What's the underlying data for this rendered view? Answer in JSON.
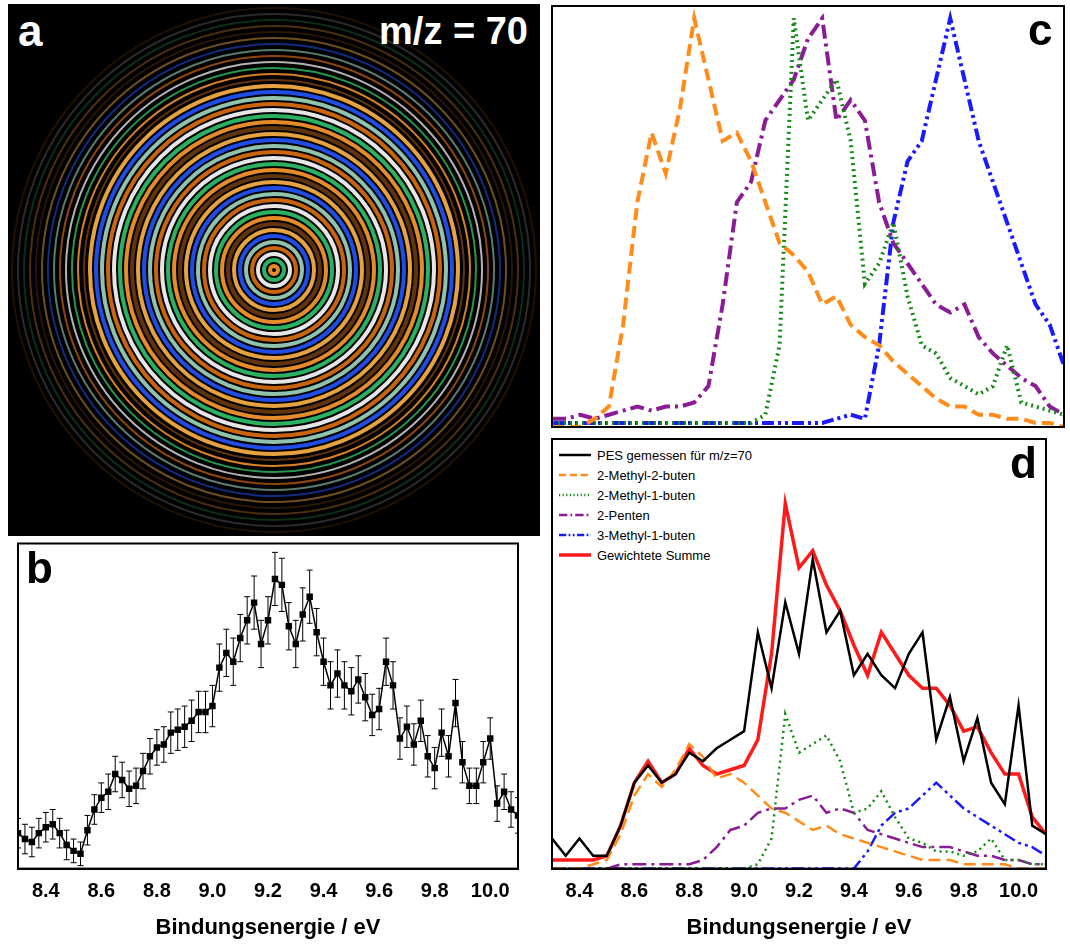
{
  "image_panel": {
    "panel": "a",
    "title": "m/z = 70"
  },
  "chart_data": [
    {
      "panel": "b",
      "type": "line",
      "x": [
        8.3,
        8.325,
        8.35,
        8.375,
        8.4,
        8.425,
        8.45,
        8.475,
        8.5,
        8.525,
        8.55,
        8.575,
        8.6,
        8.625,
        8.65,
        8.675,
        8.7,
        8.725,
        8.75,
        8.775,
        8.8,
        8.825,
        8.85,
        8.875,
        8.9,
        8.925,
        8.95,
        8.975,
        9.0,
        9.025,
        9.05,
        9.075,
        9.1,
        9.125,
        9.15,
        9.175,
        9.2,
        9.225,
        9.25,
        9.275,
        9.3,
        9.325,
        9.35,
        9.375,
        9.4,
        9.425,
        9.45,
        9.475,
        9.5,
        9.525,
        9.55,
        9.575,
        9.6,
        9.625,
        9.65,
        9.675,
        9.7,
        9.725,
        9.75,
        9.775,
        9.8,
        9.825,
        9.85,
        9.875,
        9.9,
        9.925,
        9.95,
        9.975,
        10.0,
        10.025,
        10.05,
        10.075,
        10.1
      ],
      "series": [
        {
          "color": "#000000",
          "marker": "square",
          "line_style": "solid",
          "values": [
            12,
            10,
            9,
            12,
            14,
            15,
            12,
            8,
            6,
            5,
            13,
            20,
            24,
            26,
            32,
            30,
            27,
            28,
            33,
            38,
            41,
            42,
            46,
            47,
            48,
            50,
            53,
            53,
            55,
            68,
            73,
            70,
            78,
            84,
            90,
            76,
            84,
            98,
            96,
            82,
            76,
            86,
            92,
            80,
            70,
            62,
            66,
            62,
            60,
            64,
            58,
            52,
            54,
            70,
            62,
            44,
            48,
            42,
            50,
            38,
            34,
            46,
            38,
            56,
            36,
            28,
            28,
            36,
            44,
            22,
            26,
            20,
            18
          ],
          "errors": [
            5,
            5,
            5,
            5,
            5,
            5,
            5,
            5,
            4,
            4,
            5,
            5,
            5,
            6,
            6,
            6,
            6,
            6,
            6,
            6,
            6,
            6,
            7,
            7,
            7,
            7,
            7,
            7,
            7,
            8,
            8,
            8,
            8,
            8,
            9,
            8,
            8,
            9,
            9,
            8,
            8,
            9,
            9,
            8,
            8,
            8,
            8,
            8,
            8,
            8,
            8,
            7,
            7,
            8,
            8,
            7,
            7,
            7,
            7,
            7,
            7,
            8,
            7,
            8,
            7,
            6,
            6,
            7,
            7,
            6,
            6,
            6,
            6
          ]
        }
      ],
      "xlabel": "Bindungsenergie / eV",
      "xlim": [
        8.3,
        10.1
      ],
      "xticks": [
        8.4,
        8.6,
        8.8,
        {
          "value": 9,
          "label": "9.0"
        },
        9.2,
        9.4,
        9.6,
        9.8,
        {
          "value": 10,
          "label": "10.0"
        }
      ],
      "ylim": [
        0,
        110
      ],
      "tick_labels": "x"
    },
    {
      "panel": "c",
      "type": "line",
      "x": [
        8.3,
        8.35,
        8.4,
        8.45,
        8.5,
        8.55,
        8.6,
        8.65,
        8.7,
        8.75,
        8.8,
        8.85,
        8.9,
        8.95,
        9.0,
        9.05,
        9.1,
        9.15,
        9.2,
        9.25,
        9.3,
        9.35,
        9.4,
        9.45,
        9.5,
        9.55,
        9.6,
        9.65,
        9.7,
        9.75,
        9.8,
        9.85,
        9.9,
        9.95,
        10.0,
        10.05,
        10.1
      ],
      "series": [
        {
          "color": "#ff8c1a",
          "line_style": "dashed",
          "values": [
            0,
            0,
            0,
            0.02,
            0.05,
            0.25,
            0.55,
            0.72,
            0.62,
            0.78,
            1.0,
            0.85,
            0.7,
            0.72,
            0.65,
            0.55,
            0.45,
            0.42,
            0.38,
            0.3,
            0.32,
            0.25,
            0.22,
            0.2,
            0.16,
            0.13,
            0.1,
            0.07,
            0.05,
            0.05,
            0.03,
            0.03,
            0.02,
            0.02,
            0.01,
            0.01,
            0
          ]
        },
        {
          "color": "#138a13",
          "line_style": "dotted",
          "values": [
            0.01,
            0.01,
            0.01,
            0.01,
            0.01,
            0.01,
            0.01,
            0.01,
            0.01,
            0.01,
            0.01,
            0.01,
            0.01,
            0.01,
            0.01,
            0.03,
            0.2,
            1.0,
            0.75,
            0.8,
            0.85,
            0.7,
            0.35,
            0.4,
            0.5,
            0.32,
            0.2,
            0.18,
            0.12,
            0.1,
            0.08,
            0.1,
            0.2,
            0.06,
            0.05,
            0.04,
            0.03
          ]
        },
        {
          "color": "#8a1c96",
          "line_style": "dashdot",
          "values": [
            0.02,
            0.02,
            0.03,
            0.02,
            0.03,
            0.04,
            0.05,
            0.04,
            0.05,
            0.05,
            0.06,
            0.1,
            0.3,
            0.55,
            0.6,
            0.75,
            0.8,
            0.85,
            0.95,
            1.0,
            0.75,
            0.8,
            0.75,
            0.55,
            0.45,
            0.4,
            0.35,
            0.3,
            0.28,
            0.3,
            0.22,
            0.18,
            0.15,
            0.12,
            0.1,
            0.05,
            0.03
          ]
        },
        {
          "color": "#1a1aff",
          "line_style": "dashdotdot",
          "values": [
            0.01,
            0.01,
            0.01,
            0.01,
            0.01,
            0.01,
            0.01,
            0.01,
            0.01,
            0.01,
            0.01,
            0.01,
            0.01,
            0.01,
            0.01,
            0.01,
            0.01,
            0.01,
            0.01,
            0.01,
            0.02,
            0.03,
            0.02,
            0.2,
            0.5,
            0.65,
            0.7,
            0.85,
            1.0,
            0.85,
            0.7,
            0.6,
            0.5,
            0.4,
            0.3,
            0.25,
            0.15
          ]
        }
      ],
      "xlim": [
        8.3,
        10.1
      ],
      "ylim": [
        0,
        1.03
      ],
      "tick_labels": false
    },
    {
      "panel": "d",
      "type": "line",
      "x": [
        8.3,
        8.35,
        8.4,
        8.45,
        8.5,
        8.55,
        8.6,
        8.65,
        8.7,
        8.75,
        8.8,
        8.85,
        8.9,
        8.95,
        9.0,
        9.05,
        9.1,
        9.15,
        9.2,
        9.25,
        9.3,
        9.35,
        9.4,
        9.45,
        9.5,
        9.55,
        9.6,
        9.65,
        9.7,
        9.75,
        9.8,
        9.85,
        9.9,
        9.95,
        10.0,
        10.05,
        10.1
      ],
      "series": [
        {
          "name": "PES gemessen für m/z=70",
          "color": "#000000",
          "line_style": "solid",
          "values": [
            0.07,
            0.03,
            0.07,
            0.03,
            0.03,
            0.1,
            0.2,
            0.24,
            0.2,
            0.22,
            0.27,
            0.25,
            0.28,
            0.3,
            0.32,
            0.55,
            0.42,
            0.62,
            0.5,
            0.72,
            0.55,
            0.6,
            0.45,
            0.5,
            0.45,
            0.42,
            0.5,
            0.55,
            0.3,
            0.4,
            0.25,
            0.35,
            0.2,
            0.15,
            0.38,
            0.1,
            0.08
          ]
        },
        {
          "name": "2-Methyl-2-buten",
          "color": "#ff8c1a",
          "line_style": "dashed",
          "values": [
            0,
            0,
            0,
            0.01,
            0.02,
            0.08,
            0.17,
            0.22,
            0.19,
            0.23,
            0.29,
            0.26,
            0.21,
            0.22,
            0.2,
            0.17,
            0.14,
            0.13,
            0.11,
            0.09,
            0.1,
            0.08,
            0.07,
            0.06,
            0.05,
            0.04,
            0.03,
            0.02,
            0.02,
            0.02,
            0.01,
            0.01,
            0.01,
            0.01,
            0,
            0,
            0
          ]
        },
        {
          "name": "2-Methyl-1-buten",
          "color": "#138a13",
          "line_style": "dotted",
          "values": [
            0,
            0,
            0,
            0,
            0,
            0,
            0,
            0,
            0,
            0,
            0,
            0,
            0,
            0,
            0,
            0.01,
            0.07,
            0.36,
            0.27,
            0.29,
            0.31,
            0.25,
            0.13,
            0.14,
            0.18,
            0.12,
            0.07,
            0.06,
            0.04,
            0.04,
            0.03,
            0.04,
            0.07,
            0.02,
            0.02,
            0.01,
            0.01
          ]
        },
        {
          "name": "2-Penten",
          "color": "#8a1c96",
          "line_style": "dashdot",
          "values": [
            0,
            0,
            0,
            0,
            0,
            0.01,
            0.01,
            0.01,
            0.01,
            0.01,
            0.01,
            0.02,
            0.05,
            0.09,
            0.1,
            0.13,
            0.14,
            0.14,
            0.16,
            0.17,
            0.13,
            0.14,
            0.13,
            0.09,
            0.08,
            0.07,
            0.06,
            0.05,
            0.05,
            0.05,
            0.04,
            0.03,
            0.03,
            0.02,
            0.02,
            0.01,
            0.01
          ]
        },
        {
          "name": "3-Methyl-1-buten",
          "color": "#1a1aff",
          "line_style": "dashdotdot",
          "values": [
            0,
            0,
            0,
            0,
            0,
            0,
            0,
            0,
            0,
            0,
            0,
            0,
            0,
            0,
            0,
            0,
            0,
            0,
            0,
            0,
            0,
            0,
            0,
            0.04,
            0.1,
            0.13,
            0.14,
            0.17,
            0.2,
            0.17,
            0.14,
            0.12,
            0.1,
            0.08,
            0.06,
            0.05,
            0.03
          ]
        },
        {
          "name": "Gewichtete Summe",
          "color": "#ff1a1a",
          "line_style": "solid",
          "values": [
            0.02,
            0.02,
            0.02,
            0.02,
            0.03,
            0.1,
            0.2,
            0.25,
            0.2,
            0.22,
            0.28,
            0.24,
            0.22,
            0.23,
            0.24,
            0.3,
            0.5,
            0.85,
            0.7,
            0.74,
            0.66,
            0.6,
            0.52,
            0.45,
            0.55,
            0.5,
            0.45,
            0.42,
            0.42,
            0.38,
            0.32,
            0.33,
            0.27,
            0.22,
            0.22,
            0.12,
            0.08
          ]
        }
      ],
      "xlabel": "Bindungsenergie / eV",
      "xlim": [
        8.3,
        10.1
      ],
      "xticks": [
        8.4,
        8.6,
        8.8,
        {
          "value": 9,
          "label": "9.0"
        },
        9.2,
        9.4,
        9.6,
        9.8,
        {
          "value": 10,
          "label": "10.0"
        }
      ],
      "ylim": [
        0,
        1.0
      ],
      "legend": "upper left",
      "tick_labels": "x"
    }
  ]
}
